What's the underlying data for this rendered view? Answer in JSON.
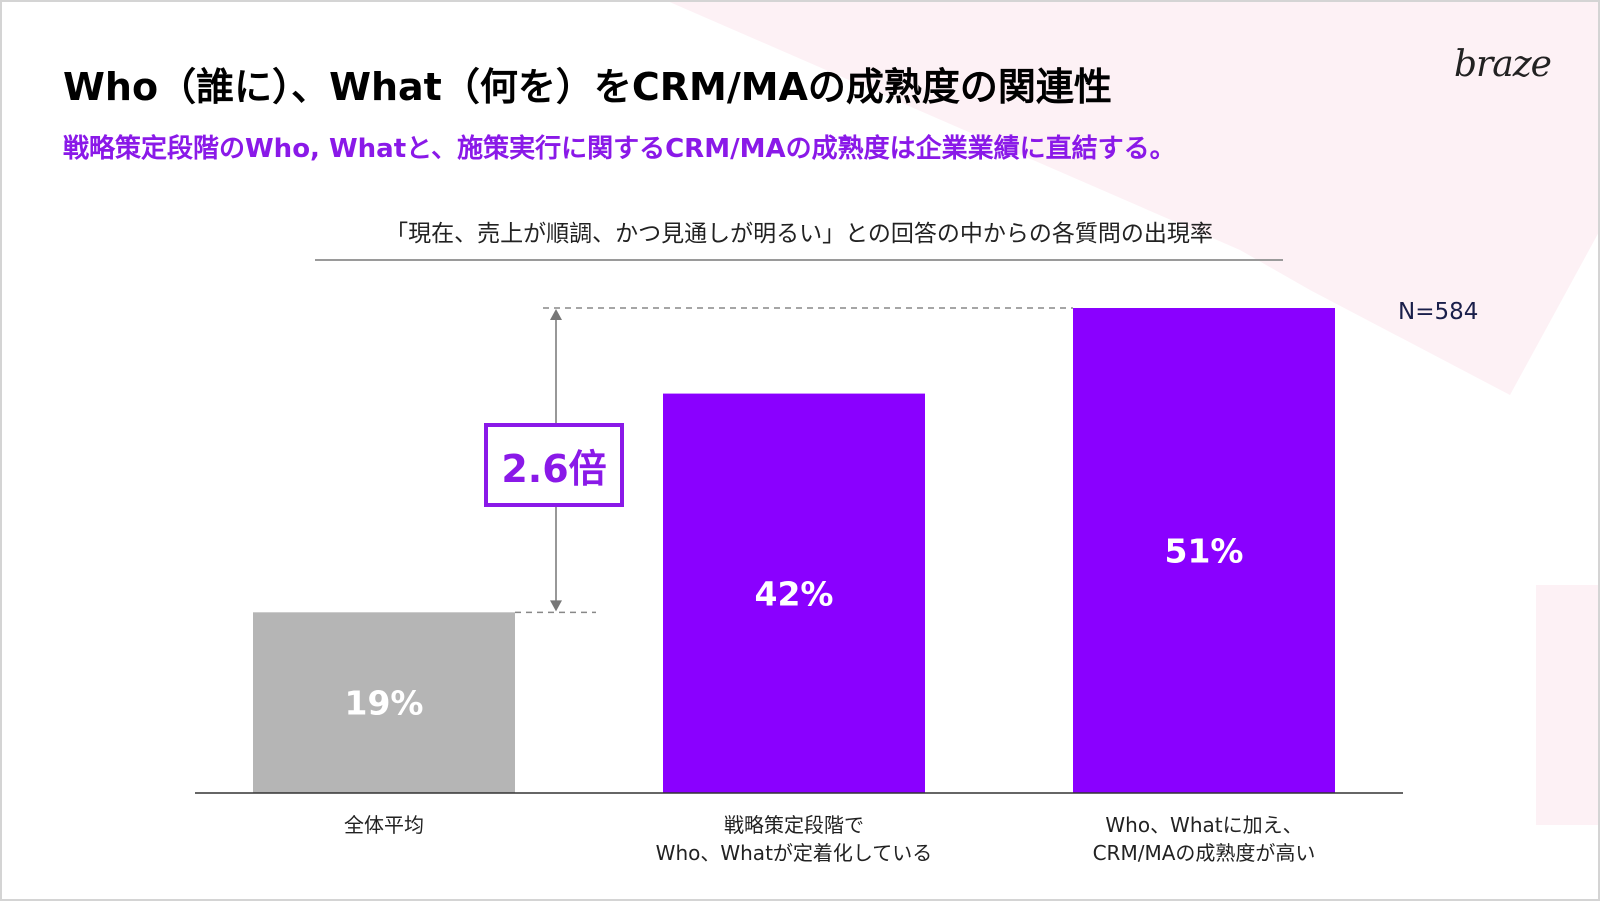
{
  "title": "Who（誰に）、What（何を）をCRM/MAの成熟度の関連性",
  "subtitle": "戦略策定段階のWho, Whatと、施策実行に関するCRM/MAの成熟度は企業業績に直結する。",
  "logo_text": "braze",
  "chart_data": {
    "type": "bar",
    "title": "「現在、売上が順調、かつ見通しが明るい」との回答の中からの各質問の出現率",
    "categories": [
      [
        "全体平均"
      ],
      [
        "戦略策定段階で",
        "Who、Whatが定着化している"
      ],
      [
        "Who、Whatに加え、",
        "CRM/MAの成熟度が高い"
      ]
    ],
    "values": [
      19,
      42,
      51
    ],
    "value_labels": [
      "19%",
      "42%",
      "51%"
    ],
    "colors": [
      "#b5b5b5",
      "#8a00ff",
      "#8a00ff"
    ],
    "ylim": [
      0,
      51
    ],
    "xlabel": "",
    "ylabel": "",
    "grid": false,
    "sample_size": "N=584",
    "annotation": {
      "text": "2.6倍",
      "from_category": 0,
      "to_category": 2
    }
  },
  "colors": {
    "accent": "#8a19e8",
    "bar_highlight": "#8a00ff",
    "bar_neutral": "#b5b5b5",
    "background_shape": "#fdf1f5"
  }
}
